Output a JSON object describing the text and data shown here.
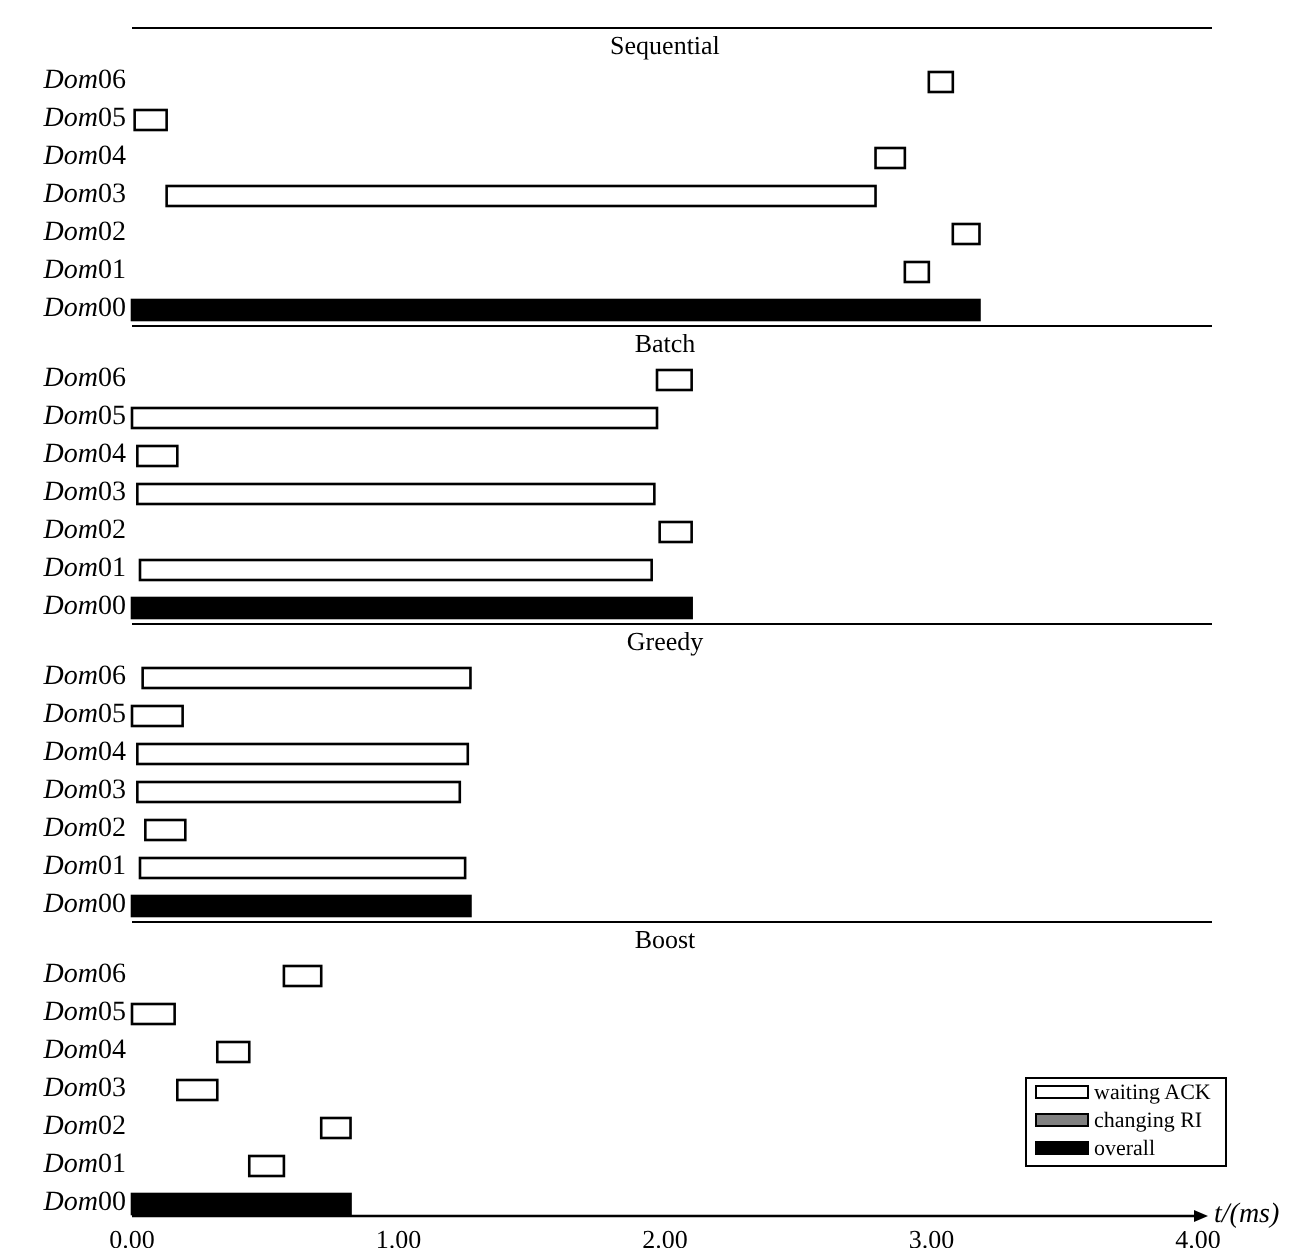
{
  "chart_data": [
    {
      "type": "bar",
      "orientation": "horizontal",
      "title": "Sequential",
      "categories": [
        "Dom06",
        "Dom05",
        "Dom04",
        "Dom03",
        "Dom02",
        "Dom01",
        "Dom00"
      ],
      "xlim": [
        0,
        4
      ],
      "tick_labels": "y",
      "series": [
        {
          "color": "#ffffff",
          "base": [
            2.99,
            0.01,
            2.79,
            0.13,
            3.08,
            2.9,
            null
          ],
          "values": [
            0.09,
            0.12,
            0.11,
            2.66,
            0.1,
            0.09,
            null
          ]
        },
        {
          "color": "#000000",
          "base": [
            null,
            null,
            null,
            null,
            null,
            null,
            0
          ],
          "values": [
            null,
            null,
            null,
            null,
            null,
            null,
            3.18
          ]
        }
      ]
    },
    {
      "type": "bar",
      "orientation": "horizontal",
      "title": "Batch",
      "categories": [
        "Dom06",
        "Dom05",
        "Dom04",
        "Dom03",
        "Dom02",
        "Dom01",
        "Dom00"
      ],
      "xlim": [
        0,
        4
      ],
      "tick_labels": "y",
      "series": [
        {
          "color": "#ffffff",
          "base": [
            1.97,
            0,
            0.02,
            0.02,
            1.98,
            0.03,
            null
          ],
          "values": [
            0.13,
            1.97,
            0.15,
            1.94,
            0.12,
            1.92,
            null
          ]
        },
        {
          "color": "#000000",
          "base": [
            null,
            null,
            null,
            null,
            null,
            null,
            0
          ],
          "values": [
            null,
            null,
            null,
            null,
            null,
            null,
            2.1
          ]
        }
      ]
    },
    {
      "type": "bar",
      "orientation": "horizontal",
      "title": "Greedy",
      "categories": [
        "Dom06",
        "Dom05",
        "Dom04",
        "Dom03",
        "Dom02",
        "Dom01",
        "Dom00"
      ],
      "xlim": [
        0,
        4
      ],
      "tick_labels": "y",
      "series": [
        {
          "color": "#ffffff",
          "base": [
            0.04,
            0,
            0.02,
            0.02,
            0.05,
            0.03,
            null
          ],
          "values": [
            1.23,
            0.19,
            1.24,
            1.21,
            0.15,
            1.22,
            null
          ]
        },
        {
          "color": "#000000",
          "base": [
            null,
            null,
            null,
            null,
            null,
            null,
            0
          ],
          "values": [
            null,
            null,
            null,
            null,
            null,
            null,
            1.27
          ]
        }
      ]
    },
    {
      "type": "bar",
      "orientation": "horizontal",
      "title": "Boost",
      "categories": [
        "Dom06",
        "Dom05",
        "Dom04",
        "Dom03",
        "Dom02",
        "Dom01",
        "Dom00"
      ],
      "xlim": [
        0,
        4
      ],
      "xticks": [
        {
          "value": 0,
          "label": "0.00"
        },
        {
          "value": 1,
          "label": "1.00"
        },
        {
          "value": 2,
          "label": "2.00"
        },
        {
          "value": 3,
          "label": "3.00"
        },
        {
          "value": 4,
          "label": "4.00"
        }
      ],
      "xlabel": "t/(ms)",
      "legend": "bottom right",
      "series": [
        {
          "name": "waiting ACK",
          "color": "#ffffff",
          "base": [
            0.57,
            0,
            0.32,
            0.17,
            0.71,
            0.44,
            null
          ],
          "values": [
            0.14,
            0.16,
            0.12,
            0.15,
            0.11,
            0.13,
            null
          ]
        },
        {
          "name": "changing RI",
          "color": "#808080",
          "base": [
            null,
            null,
            null,
            null,
            null,
            null,
            null
          ],
          "values": [
            null,
            null,
            null,
            null,
            null,
            null,
            null
          ]
        },
        {
          "name": "overall",
          "color": "#000000",
          "base": [
            null,
            null,
            null,
            null,
            null,
            null,
            0
          ],
          "values": [
            null,
            null,
            null,
            null,
            null,
            null,
            0.82
          ]
        }
      ]
    }
  ]
}
